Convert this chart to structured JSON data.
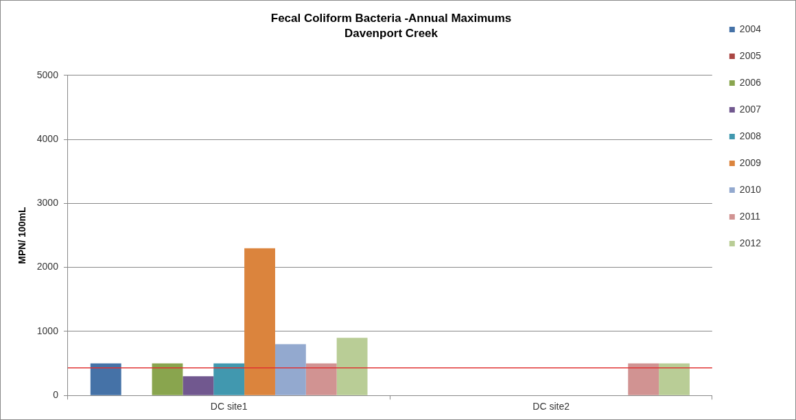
{
  "chart_data": {
    "type": "bar",
    "title": "Fecal Coliform Bacteria -Annual Maximums",
    "subtitle": "Davenport Creek",
    "ylabel": "MPN/ 100mL",
    "categories": [
      "DC site1",
      "DC site2"
    ],
    "series": [
      {
        "name": "2004",
        "color": "#4572a7",
        "values": [
          500,
          null
        ]
      },
      {
        "name": "2005",
        "color": "#aa4643",
        "values": [
          null,
          null
        ]
      },
      {
        "name": "2006",
        "color": "#89a54e",
        "values": [
          500,
          null
        ]
      },
      {
        "name": "2007",
        "color": "#71588f",
        "values": [
          300,
          null
        ]
      },
      {
        "name": "2008",
        "color": "#4198af",
        "values": [
          500,
          null
        ]
      },
      {
        "name": "2009",
        "color": "#db843d",
        "values": [
          2300,
          null
        ]
      },
      {
        "name": "2010",
        "color": "#93a9cf",
        "values": [
          800,
          null
        ]
      },
      {
        "name": "2011",
        "color": "#d19392",
        "values": [
          500,
          500
        ]
      },
      {
        "name": "2012",
        "color": "#b9cd96",
        "values": [
          900,
          500
        ]
      }
    ],
    "ylim": [
      0,
      5000
    ],
    "yticks": [
      0,
      1000,
      2000,
      3000,
      4000,
      5000
    ],
    "grid": "y",
    "legend": "right",
    "ref_lines": [
      {
        "axis": "y",
        "value": 430,
        "color": "#e03030"
      }
    ]
  }
}
